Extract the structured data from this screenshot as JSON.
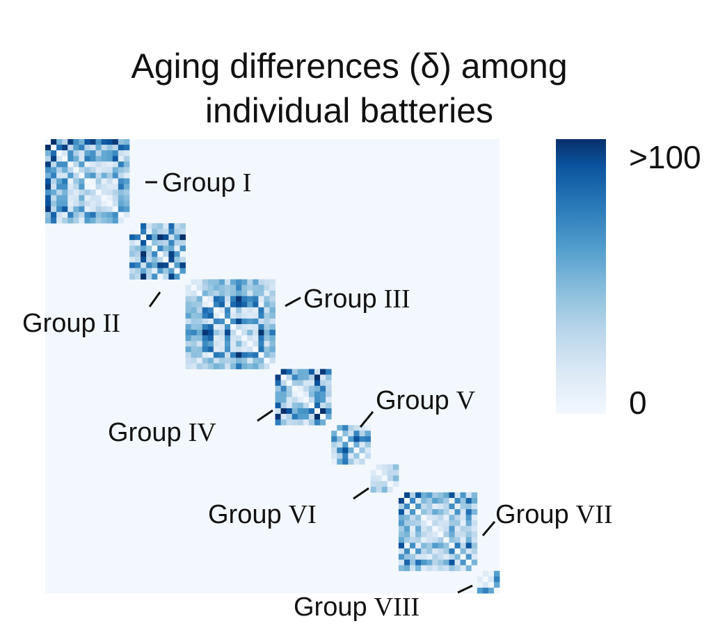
{
  "chart_data": {
    "type": "heatmap",
    "title_line1": "Aging differences (δ) among",
    "title_line2": "individual batteries",
    "colorbar": {
      "min_label": "0",
      "max_label": ">100",
      "min": 0,
      "max": 100
    },
    "colormap": [
      "#f3f8fe",
      "#dbe9f6",
      "#bad6eb",
      "#89bedc",
      "#539ecd",
      "#2b7bba",
      "#0b559f",
      "#08306b"
    ],
    "background_value": 3,
    "groups": [
      {
        "word": "Group",
        "numeral": "I",
        "size": 15
      },
      {
        "word": "Group",
        "numeral": "II",
        "size": 10
      },
      {
        "word": "Group",
        "numeral": "III",
        "size": 16
      },
      {
        "word": "Group",
        "numeral": "IV",
        "size": 10
      },
      {
        "word": "Group",
        "numeral": "V",
        "size": 7
      },
      {
        "word": "Group",
        "numeral": "VI",
        "size": 5
      },
      {
        "word": "Group",
        "numeral": "VII",
        "size": 14
      },
      {
        "word": "Group",
        "numeral": "VIII",
        "size": 4
      }
    ]
  }
}
